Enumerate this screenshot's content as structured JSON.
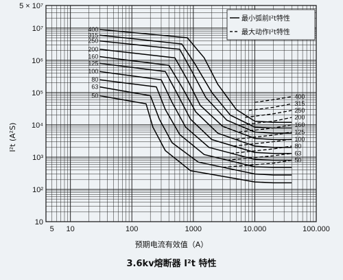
{
  "chart_data": {
    "type": "line",
    "title": "3.6kv熔断器 I²t 特性",
    "xlabel": "预期电流有效值（A）",
    "ylabel": "I²t (A²S)",
    "x_scale": "log",
    "y_scale": "log",
    "xlim": [
      4,
      100000
    ],
    "ylim": [
      10,
      50000000
    ],
    "x_ticks": [
      {
        "v": 5,
        "label": "5"
      },
      {
        "v": 10,
        "label": "10"
      },
      {
        "v": 100,
        "label": "100"
      },
      {
        "v": 1000,
        "label": "1000"
      },
      {
        "v": 10000,
        "label": "10.000"
      },
      {
        "v": 100000,
        "label": "100.000"
      }
    ],
    "y_ticks": [
      {
        "v": 10,
        "label": "10"
      },
      {
        "v": 100,
        "label": "10²"
      },
      {
        "v": 1000,
        "label": "10³"
      },
      {
        "v": 10000,
        "label": "10⁴"
      },
      {
        "v": 100000,
        "label": "10⁵"
      },
      {
        "v": 1000000,
        "label": "10⁶"
      },
      {
        "v": 10000000,
        "label": "10⁷"
      },
      {
        "v": 50000000,
        "label": "5 × 10⁷"
      }
    ],
    "grid": true,
    "legend": {
      "position": "top-right",
      "items": [
        {
          "label": "最小弧前I²t特性",
          "style": "solid"
        },
        {
          "label": "最大动作I²t特性",
          "style": "dashed"
        }
      ]
    },
    "series": [
      {
        "name": "400",
        "style": "solid",
        "points": [
          [
            30,
            9000000
          ],
          [
            800,
            5000000
          ],
          [
            1500,
            1200000
          ],
          [
            2500,
            180000
          ],
          [
            5000,
            30000
          ],
          [
            10000,
            13000
          ],
          [
            20000,
            12000
          ],
          [
            40000,
            12000
          ]
        ]
      },
      {
        "name": "315",
        "style": "solid",
        "points": [
          [
            30,
            6000000
          ],
          [
            650,
            3200000
          ],
          [
            1100,
            700000
          ],
          [
            2000,
            100000
          ],
          [
            4000,
            20000
          ],
          [
            10000,
            8500
          ],
          [
            20000,
            8000
          ],
          [
            40000,
            8000
          ]
        ]
      },
      {
        "name": "250",
        "style": "solid",
        "points": [
          [
            30,
            4000000
          ],
          [
            600,
            2200000
          ],
          [
            950,
            450000
          ],
          [
            1600,
            70000
          ],
          [
            3500,
            14000
          ],
          [
            10000,
            6000
          ],
          [
            20000,
            5500
          ],
          [
            40000,
            5500
          ]
        ]
      },
      {
        "name": "200",
        "style": "solid",
        "points": [
          [
            30,
            2200000
          ],
          [
            500,
            1200000
          ],
          [
            800,
            250000
          ],
          [
            1300,
            40000
          ],
          [
            3000,
            9000
          ],
          [
            10000,
            3800
          ],
          [
            20000,
            3500
          ],
          [
            40000,
            3500
          ]
        ]
      },
      {
        "name": "160",
        "style": "solid",
        "points": [
          [
            30,
            1300000
          ],
          [
            400,
            700000
          ],
          [
            650,
            150000
          ],
          [
            1100,
            25000
          ],
          [
            2500,
            5500
          ],
          [
            10000,
            2200
          ],
          [
            20000,
            2000
          ],
          [
            40000,
            2000
          ]
        ]
      },
      {
        "name": "125",
        "style": "solid",
        "points": [
          [
            30,
            800000
          ],
          [
            350,
            450000
          ],
          [
            550,
            90000
          ],
          [
            900,
            15000
          ],
          [
            2000,
            3500
          ],
          [
            10000,
            1400
          ],
          [
            20000,
            1300
          ],
          [
            40000,
            1300
          ]
        ]
      },
      {
        "name": "100",
        "style": "solid",
        "points": [
          [
            30,
            450000
          ],
          [
            300,
            250000
          ],
          [
            450,
            50000
          ],
          [
            750,
            8500
          ],
          [
            1800,
            2000
          ],
          [
            10000,
            850
          ],
          [
            20000,
            800
          ],
          [
            40000,
            800
          ]
        ]
      },
      {
        "name": "80",
        "style": "solid",
        "points": [
          [
            30,
            250000
          ],
          [
            250,
            150000
          ],
          [
            350,
            30000
          ],
          [
            600,
            5000
          ],
          [
            1500,
            1200
          ],
          [
            10000,
            500
          ],
          [
            20000,
            480
          ],
          [
            40000,
            480
          ]
        ]
      },
      {
        "name": "63",
        "style": "solid",
        "points": [
          [
            30,
            150000
          ],
          [
            200,
            80000
          ],
          [
            280,
            15000
          ],
          [
            450,
            2800
          ],
          [
            1200,
            700
          ],
          [
            10000,
            300
          ],
          [
            20000,
            280
          ],
          [
            40000,
            280
          ]
        ]
      },
      {
        "name": "50",
        "style": "solid",
        "points": [
          [
            30,
            80000
          ],
          [
            170,
            45000
          ],
          [
            220,
            8500
          ],
          [
            350,
            1600
          ],
          [
            900,
            380
          ],
          [
            10000,
            170
          ],
          [
            20000,
            160
          ],
          [
            40000,
            160
          ]
        ]
      }
    ],
    "dashed_series": [
      {
        "name": "400",
        "points": [
          [
            10000,
            50000
          ],
          [
            20000,
            60000
          ],
          [
            40000,
            75000
          ]
        ]
      },
      {
        "name": "315",
        "points": [
          [
            8000,
            28000
          ],
          [
            20000,
            35000
          ],
          [
            40000,
            45000
          ]
        ]
      },
      {
        "name": "250",
        "points": [
          [
            7000,
            17000
          ],
          [
            20000,
            22000
          ],
          [
            40000,
            28000
          ]
        ]
      },
      {
        "name": "200",
        "points": [
          [
            6000,
            10000
          ],
          [
            20000,
            13000
          ],
          [
            40000,
            17000
          ]
        ]
      },
      {
        "name": "160",
        "points": [
          [
            5500,
            6000
          ],
          [
            20000,
            8000
          ],
          [
            40000,
            10000
          ]
        ]
      },
      {
        "name": "125",
        "points": [
          [
            5000,
            3600
          ],
          [
            20000,
            4800
          ],
          [
            40000,
            6000
          ]
        ]
      },
      {
        "name": "100",
        "points": [
          [
            4500,
            2200
          ],
          [
            20000,
            3000
          ],
          [
            40000,
            3600
          ]
        ]
      },
      {
        "name": "80",
        "points": [
          [
            4000,
            1300
          ],
          [
            20000,
            1800
          ],
          [
            40000,
            2200
          ]
        ]
      },
      {
        "name": "63",
        "points": [
          [
            3500,
            800
          ],
          [
            20000,
            1100
          ],
          [
            40000,
            1300
          ]
        ]
      },
      {
        "name": "50",
        "points": [
          [
            3000,
            480
          ],
          [
            20000,
            650
          ],
          [
            40000,
            800
          ]
        ]
      }
    ]
  }
}
